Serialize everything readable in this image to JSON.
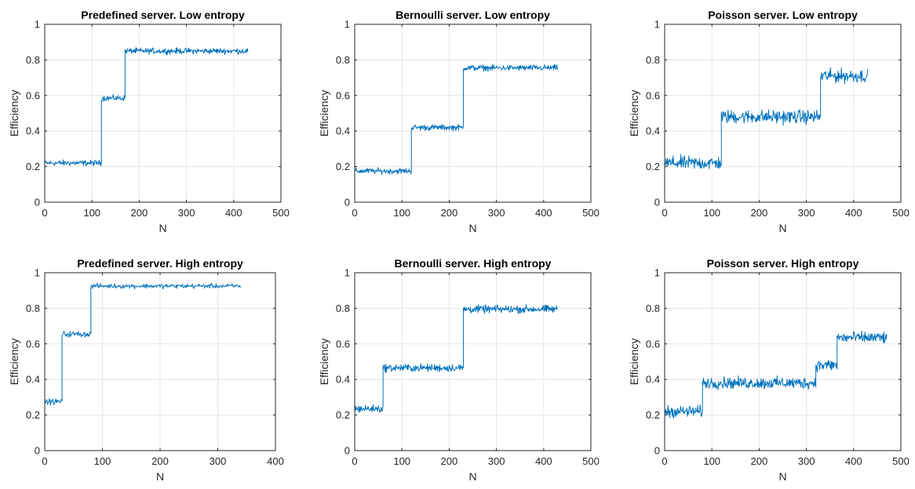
{
  "colors": {
    "line": "#0072BD",
    "axis": "#262626",
    "grid": "#e6e6e6",
    "background": "#ffffff"
  },
  "chart_data": [
    {
      "type": "line",
      "title": "Predefined server. Low entropy",
      "xlabel": "N",
      "ylabel": "Efficiency",
      "xlim": [
        0,
        500
      ],
      "ylim": [
        0,
        1
      ],
      "xticks": [
        0,
        100,
        200,
        300,
        400,
        500
      ],
      "yticks": [
        0,
        0.2,
        0.4,
        0.6,
        0.8,
        1
      ],
      "xtick_labels": [
        "0",
        "100",
        "200",
        "300",
        "400",
        "500"
      ],
      "ytick_labels": [
        "0",
        "0.2",
        "0.4",
        "0.6",
        "0.8",
        "1"
      ],
      "grid": true,
      "levels": [
        {
          "x_start": 0,
          "x_end": 120,
          "mean": 0.22,
          "noise": 0.015
        },
        {
          "x_start": 120,
          "x_end": 170,
          "mean": 0.585,
          "noise": 0.015
        },
        {
          "x_start": 170,
          "x_end": 430,
          "mean": 0.85,
          "noise": 0.015
        }
      ]
    },
    {
      "type": "line",
      "title": "Bernoulli server. Low entropy",
      "xlabel": "N",
      "ylabel": "Efficiency",
      "xlim": [
        0,
        500
      ],
      "ylim": [
        0,
        1
      ],
      "xticks": [
        0,
        100,
        200,
        300,
        400,
        500
      ],
      "yticks": [
        0,
        0.2,
        0.4,
        0.6,
        0.8,
        1
      ],
      "xtick_labels": [
        "0",
        "100",
        "200",
        "300",
        "400",
        "500"
      ],
      "ytick_labels": [
        "0",
        "0.2",
        "0.4",
        "0.6",
        "0.8",
        "1"
      ],
      "grid": true,
      "levels": [
        {
          "x_start": 0,
          "x_end": 120,
          "mean": 0.175,
          "noise": 0.015
        },
        {
          "x_start": 120,
          "x_end": 230,
          "mean": 0.42,
          "noise": 0.015
        },
        {
          "x_start": 230,
          "x_end": 430,
          "mean": 0.755,
          "noise": 0.015
        }
      ]
    },
    {
      "type": "line",
      "title": "Poisson server. Low entropy",
      "xlabel": "N",
      "ylabel": "Efficiency",
      "xlim": [
        0,
        500
      ],
      "ylim": [
        0,
        1
      ],
      "xticks": [
        0,
        100,
        200,
        300,
        400,
        500
      ],
      "yticks": [
        0,
        0.2,
        0.4,
        0.6,
        0.8,
        1
      ],
      "xtick_labels": [
        "0",
        "100",
        "200",
        "300",
        "400",
        "500"
      ],
      "ytick_labels": [
        "0",
        "0.2",
        "0.4",
        "0.6",
        "0.8",
        "1"
      ],
      "grid": true,
      "levels": [
        {
          "x_start": 0,
          "x_end": 120,
          "mean": 0.22,
          "noise": 0.035
        },
        {
          "x_start": 120,
          "x_end": 330,
          "mean": 0.48,
          "noise": 0.035
        },
        {
          "x_start": 330,
          "x_end": 430,
          "mean": 0.71,
          "noise": 0.035
        }
      ]
    },
    {
      "type": "line",
      "title": "Predefined server. High entropy",
      "xlabel": "N",
      "ylabel": "Efficiency",
      "xlim": [
        0,
        400
      ],
      "ylim": [
        0,
        1
      ],
      "xticks": [
        0,
        100,
        200,
        300,
        400
      ],
      "yticks": [
        0,
        0.2,
        0.4,
        0.6,
        0.8,
        1
      ],
      "xtick_labels": [
        "0",
        "100",
        "200",
        "300",
        "400"
      ],
      "ytick_labels": [
        "0",
        "0.2",
        "0.4",
        "0.6",
        "0.8",
        "1"
      ],
      "grid": true,
      "levels": [
        {
          "x_start": 0,
          "x_end": 30,
          "mean": 0.275,
          "noise": 0.015
        },
        {
          "x_start": 30,
          "x_end": 80,
          "mean": 0.655,
          "noise": 0.015
        },
        {
          "x_start": 80,
          "x_end": 340,
          "mean": 0.925,
          "noise": 0.012
        }
      ]
    },
    {
      "type": "line",
      "title": "Bernoulli server. High entropy",
      "xlabel": "N",
      "ylabel": "Efficiency",
      "xlim": [
        0,
        500
      ],
      "ylim": [
        0,
        1
      ],
      "xticks": [
        0,
        100,
        200,
        300,
        400,
        500
      ],
      "yticks": [
        0,
        0.2,
        0.4,
        0.6,
        0.8,
        1
      ],
      "xtick_labels": [
        "0",
        "100",
        "200",
        "300",
        "400",
        "500"
      ],
      "ytick_labels": [
        "0",
        "0.2",
        "0.4",
        "0.6",
        "0.8",
        "1"
      ],
      "grid": true,
      "levels": [
        {
          "x_start": 0,
          "x_end": 60,
          "mean": 0.235,
          "noise": 0.02
        },
        {
          "x_start": 60,
          "x_end": 230,
          "mean": 0.465,
          "noise": 0.02
        },
        {
          "x_start": 230,
          "x_end": 430,
          "mean": 0.795,
          "noise": 0.02
        }
      ]
    },
    {
      "type": "line",
      "title": "Poisson server. High entropy",
      "xlabel": "N",
      "ylabel": "Efficiency",
      "xlim": [
        0,
        500
      ],
      "ylim": [
        0,
        1
      ],
      "xticks": [
        0,
        100,
        200,
        300,
        400,
        500
      ],
      "yticks": [
        0,
        0.2,
        0.4,
        0.6,
        0.8,
        1
      ],
      "xtick_labels": [
        "0",
        "100",
        "200",
        "300",
        "400",
        "500"
      ],
      "ytick_labels": [
        "0",
        "0.2",
        "0.4",
        "0.6",
        "0.8",
        "1"
      ],
      "grid": true,
      "levels": [
        {
          "x_start": 0,
          "x_end": 80,
          "mean": 0.22,
          "noise": 0.03
        },
        {
          "x_start": 80,
          "x_end": 320,
          "mean": 0.38,
          "noise": 0.03
        },
        {
          "x_start": 320,
          "x_end": 365,
          "mean": 0.48,
          "noise": 0.03
        },
        {
          "x_start": 365,
          "x_end": 470,
          "mean": 0.635,
          "noise": 0.03
        }
      ]
    }
  ]
}
